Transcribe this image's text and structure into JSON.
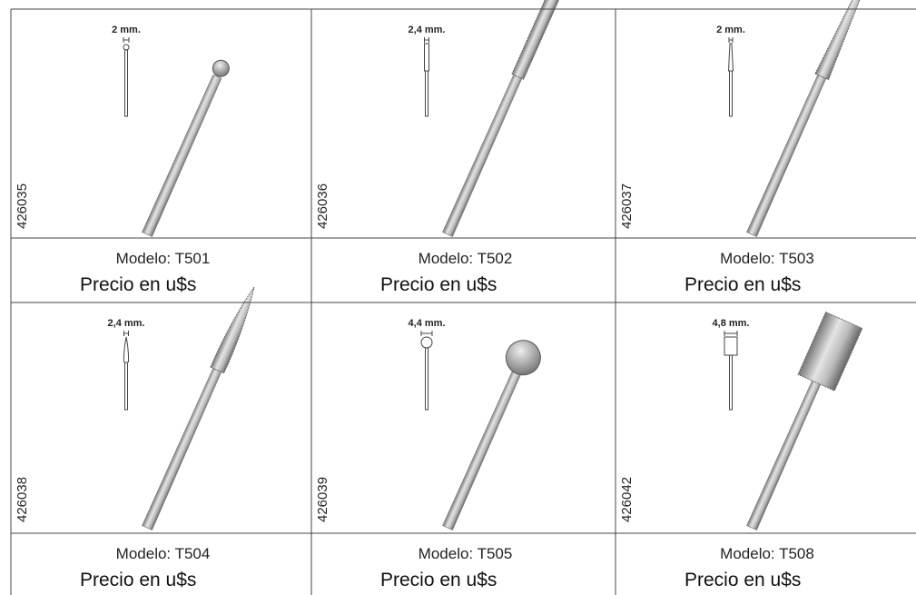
{
  "products": [
    {
      "code": "426035",
      "size": "2 mm.",
      "model": "Modelo: T501",
      "price": "Precio en u$s"
    },
    {
      "code": "426036",
      "size": "2,4 mm.",
      "model": "Modelo: T502",
      "price": "Precio en u$s"
    },
    {
      "code": "426037",
      "size": "2 mm.",
      "model": "Modelo: T503",
      "price": "Precio en u$s"
    },
    {
      "code": "426038",
      "size": "2,4 mm.",
      "model": "Modelo: T504",
      "price": "Precio en u$s"
    },
    {
      "code": "426039",
      "size": "4,4 mm.",
      "model": "Modelo: T505",
      "price": "Precio en u$s"
    },
    {
      "code": "426042",
      "size": "4,8 mm.",
      "model": "Modelo: T508",
      "price": "Precio en u$s"
    }
  ]
}
